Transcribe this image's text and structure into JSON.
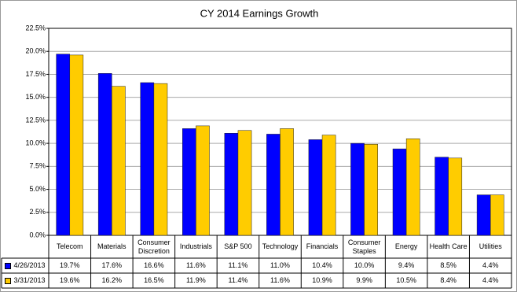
{
  "chart_data": {
    "type": "bar",
    "title": "CY 2014 Earnings Growth",
    "categories": [
      "Telecom",
      "Materials",
      "Consumer Discretion",
      "Industrials",
      "S&P 500",
      "Technology",
      "Financials",
      "Consumer Staples",
      "Energy",
      "Health Care",
      "Utilities"
    ],
    "series": [
      {
        "name": "4/26/2013",
        "color": "#0000ff",
        "values": [
          19.7,
          17.6,
          16.6,
          11.6,
          11.1,
          11.0,
          10.4,
          10.0,
          9.4,
          8.5,
          4.4
        ],
        "value_labels": [
          "19.7%",
          "17.6%",
          "16.6%",
          "11.6%",
          "11.1%",
          "11.0%",
          "10.4%",
          "10.0%",
          "9.4%",
          "8.5%",
          "4.4%"
        ]
      },
      {
        "name": "3/31/2013",
        "color": "#ffcc00",
        "values": [
          19.6,
          16.2,
          16.5,
          11.9,
          11.4,
          11.6,
          10.9,
          9.9,
          10.5,
          8.4,
          4.4
        ],
        "value_labels": [
          "19.6%",
          "16.2%",
          "16.5%",
          "11.9%",
          "11.4%",
          "11.6%",
          "10.9%",
          "9.9%",
          "10.5%",
          "8.4%",
          "4.4%"
        ]
      }
    ],
    "ylim": [
      0,
      22.5
    ],
    "yticks": [
      {
        "value": 0,
        "label": "0.0%"
      },
      {
        "value": 2.5,
        "label": "2.5%"
      },
      {
        "value": 5,
        "label": "5.0%"
      },
      {
        "value": 7.5,
        "label": "7.5%"
      },
      {
        "value": 10,
        "label": "10.0%"
      },
      {
        "value": 12.5,
        "label": "12.5%"
      },
      {
        "value": 15,
        "label": "15.0%"
      },
      {
        "value": 17.5,
        "label": "17.5%"
      },
      {
        "value": 20,
        "label": "20.0%"
      },
      {
        "value": 22.5,
        "label": "22.5%"
      }
    ],
    "grid": true
  }
}
